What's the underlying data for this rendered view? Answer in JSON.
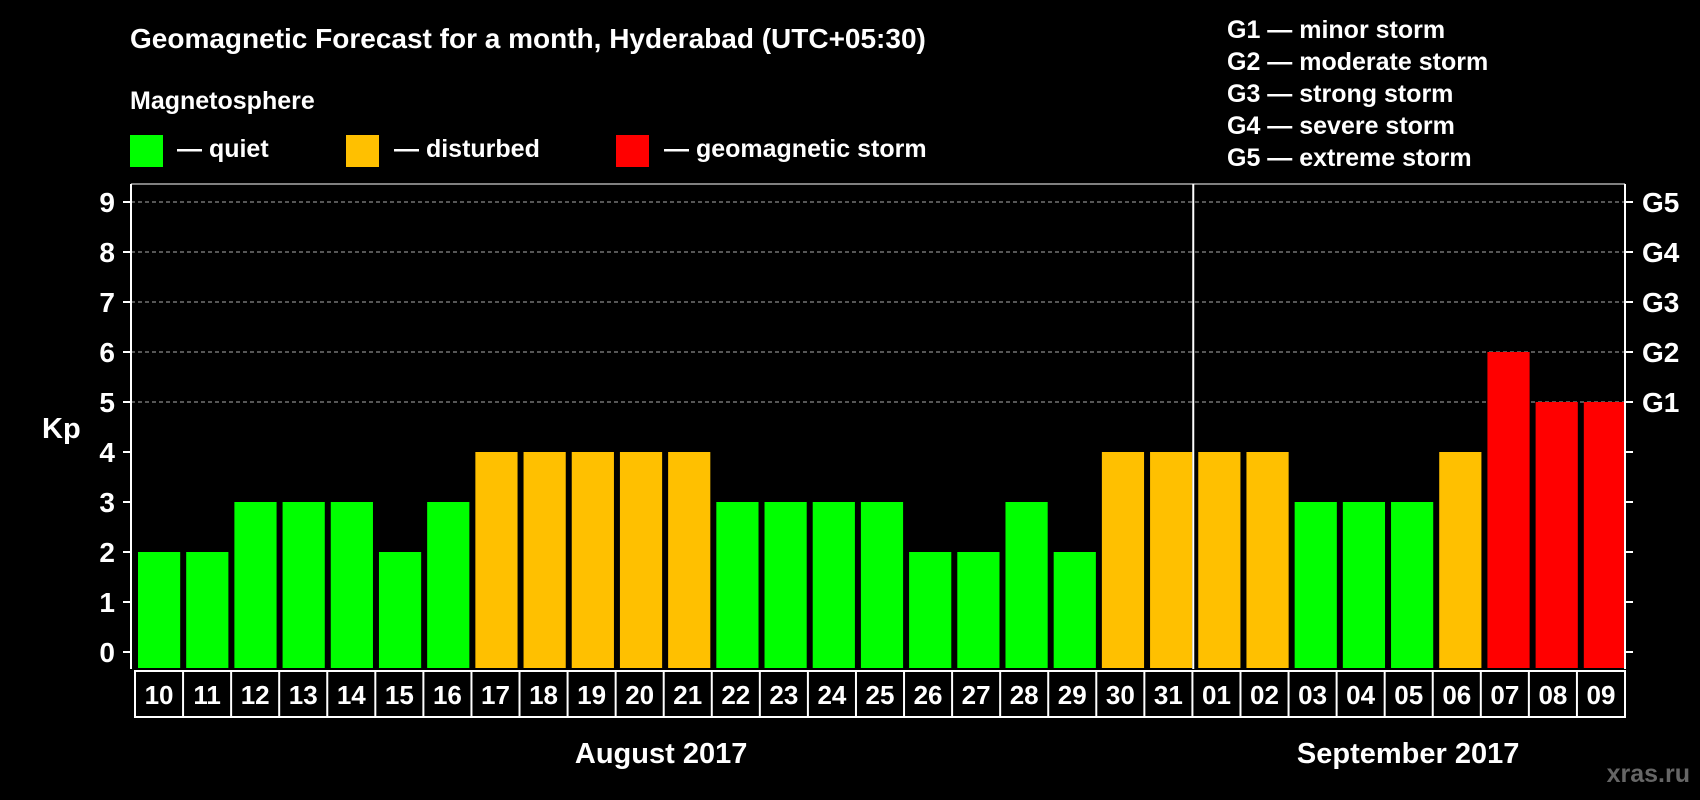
{
  "chart_data": {
    "type": "bar",
    "title": "Geomagnetic Forecast for a month, Hyderabad (UTC+05:30)",
    "legend_heading": "Magnetosphere",
    "legend": [
      {
        "label": "— quiet",
        "color": "#00ff00"
      },
      {
        "label": "— disturbed",
        "color": "#ffc000"
      },
      {
        "label": "— geomagnetic storm",
        "color": "#ff0000"
      }
    ],
    "storm_scale": [
      "G1 — minor storm",
      "G2 — moderate storm",
      "G3 — strong storm",
      "G4 — severe storm",
      "G5 — extreme storm"
    ],
    "ylabel": "Kp",
    "ylim": [
      0,
      9
    ],
    "y_ticks": [
      "0",
      "1",
      "2",
      "3",
      "4",
      "5",
      "6",
      "7",
      "8",
      "9"
    ],
    "right_ticks": [
      {
        "kp": 5,
        "label": "G1"
      },
      {
        "kp": 6,
        "label": "G2"
      },
      {
        "kp": 7,
        "label": "G3"
      },
      {
        "kp": 8,
        "label": "G4"
      },
      {
        "kp": 9,
        "label": "G5"
      }
    ],
    "grid": "dashed horizontal lines at Kp 5–9",
    "categories": [
      "10",
      "11",
      "12",
      "13",
      "14",
      "15",
      "16",
      "17",
      "18",
      "19",
      "20",
      "21",
      "22",
      "23",
      "24",
      "25",
      "26",
      "27",
      "28",
      "29",
      "30",
      "31",
      "01",
      "02",
      "03",
      "04",
      "05",
      "06",
      "07",
      "08",
      "09"
    ],
    "values": [
      2,
      2,
      3,
      3,
      3,
      2,
      3,
      4,
      4,
      4,
      4,
      4,
      3,
      3,
      3,
      3,
      2,
      2,
      3,
      2,
      4,
      4,
      4,
      4,
      3,
      3,
      3,
      4,
      6,
      5,
      5
    ],
    "months": [
      {
        "label": "August 2017",
        "first_index": 0,
        "last_index": 21
      },
      {
        "label": "September 2017",
        "first_index": 22,
        "last_index": 30
      }
    ],
    "color_rule": {
      "quiet_max": 3,
      "disturbed": 4,
      "storm_min": 5
    }
  },
  "watermark": "xras.ru"
}
